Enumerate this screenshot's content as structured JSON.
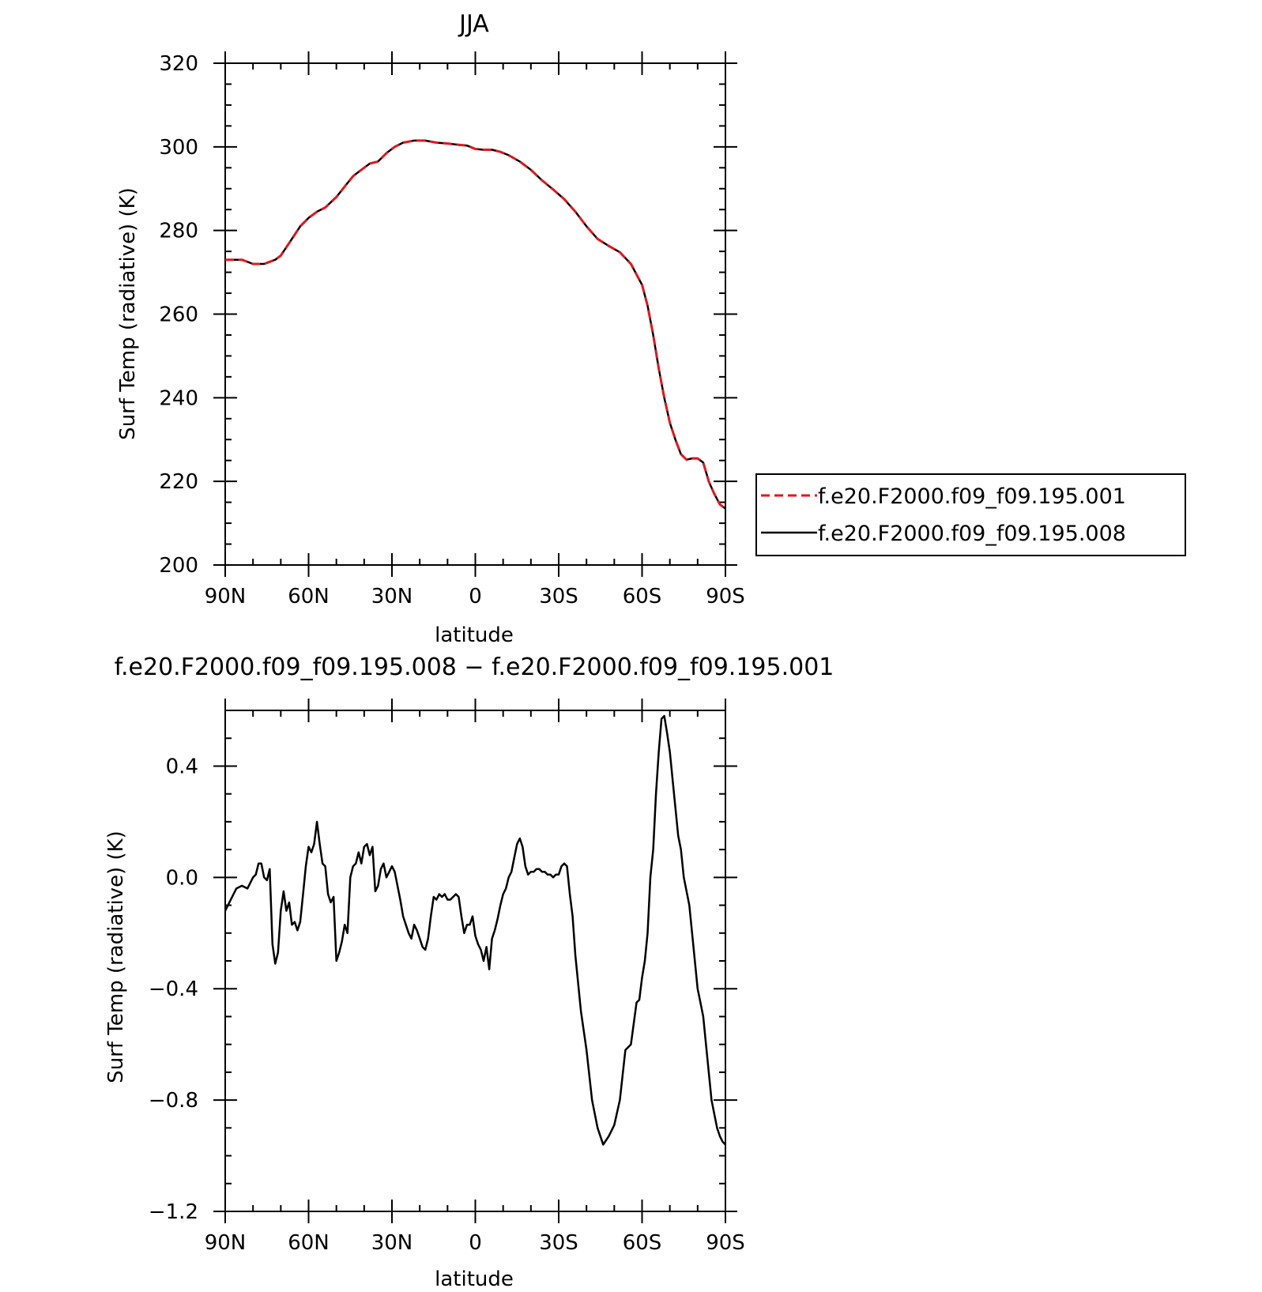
{
  "chart_data": [
    {
      "type": "line",
      "title": "JJA",
      "xlabel": "latitude",
      "ylabel": "Surf Temp (radiative) (K)",
      "x_tick_labels": [
        "90N",
        "60N",
        "30N",
        "0",
        "30S",
        "60S",
        "90S"
      ],
      "x_ticks": [
        90,
        60,
        30,
        0,
        -30,
        -60,
        -90
      ],
      "xlim": [
        90,
        -90
      ],
      "y_tick_labels": [
        "200",
        "220",
        "240",
        "260",
        "280",
        "300",
        "320"
      ],
      "y_ticks": [
        200,
        220,
        240,
        260,
        280,
        300,
        320
      ],
      "ylim": [
        200,
        320
      ],
      "grid": false,
      "legend": "outside-right",
      "series": [
        {
          "name": "f.e20.F2000.f09_f09.195.001",
          "color": "#e8141c",
          "style": "dashed",
          "x": [
            90,
            84,
            80,
            76,
            72,
            70,
            68,
            66,
            63,
            60,
            57,
            54,
            50,
            47,
            44,
            41,
            38,
            35,
            32,
            29,
            26,
            22,
            18,
            14,
            10,
            6,
            3,
            0,
            -3,
            -6,
            -9,
            -12,
            -16,
            -20,
            -24,
            -28,
            -32,
            -36,
            -40,
            -44,
            -48,
            -52,
            -56,
            -60,
            -62,
            -64,
            -66,
            -68,
            -70,
            -72,
            -74,
            -76,
            -78,
            -80,
            -82,
            -84,
            -86,
            -88,
            -90
          ],
          "y": [
            273,
            273,
            272,
            272,
            273,
            274,
            276,
            278,
            281,
            283,
            284.5,
            285.5,
            288,
            290.5,
            293,
            294.5,
            296,
            296.5,
            298.5,
            300,
            301,
            301.5,
            301.5,
            301,
            300.8,
            300.5,
            300.3,
            299.5,
            299.3,
            299.3,
            298.8,
            298,
            296.5,
            294.5,
            292,
            289.8,
            287.5,
            284.5,
            281,
            278,
            276.3,
            274.8,
            272,
            267,
            262,
            255,
            247,
            240,
            234,
            230,
            226.5,
            225.2,
            225.5,
            225.5,
            224.5,
            220,
            217,
            214.5,
            213.5
          ]
        },
        {
          "name": "f.e20.F2000.f09_f09.195.008",
          "color": "#000000",
          "style": "solid",
          "x": [
            90,
            84,
            80,
            76,
            72,
            70,
            68,
            66,
            63,
            60,
            57,
            54,
            50,
            47,
            44,
            41,
            38,
            35,
            32,
            29,
            26,
            22,
            18,
            14,
            10,
            6,
            3,
            0,
            -3,
            -6,
            -9,
            -12,
            -16,
            -20,
            -24,
            -28,
            -32,
            -36,
            -40,
            -44,
            -48,
            -52,
            -56,
            -60,
            -62,
            -64,
            -66,
            -68,
            -70,
            -72,
            -74,
            -76,
            -78,
            -80,
            -82,
            -84,
            -86,
            -88,
            -90
          ],
          "y": [
            273,
            273,
            272,
            272,
            273,
            274,
            276,
            278,
            281,
            283,
            284.5,
            285.5,
            288,
            290.5,
            293,
            294.5,
            296,
            296.5,
            298.5,
            300,
            301,
            301.5,
            301.5,
            301,
            300.8,
            300.5,
            300.3,
            299.5,
            299.3,
            299.3,
            298.8,
            298,
            296.5,
            294.5,
            292,
            289.8,
            287.5,
            284.5,
            281,
            278,
            276.3,
            274.8,
            272,
            267,
            262,
            255,
            247,
            240,
            234,
            230,
            226.5,
            225.2,
            225.5,
            225.5,
            224.5,
            220,
            217,
            214.5,
            213.5
          ]
        }
      ]
    },
    {
      "type": "line",
      "title": "f.e20.F2000.f09_f09.195.008 − f.e20.F2000.f09_f09.195.001",
      "xlabel": "latitude",
      "ylabel": "Surf Temp (radiative) (K)",
      "x_tick_labels": [
        "90N",
        "60N",
        "30N",
        "0",
        "30S",
        "60S",
        "90S"
      ],
      "x_ticks": [
        90,
        60,
        30,
        0,
        -30,
        -60,
        -90
      ],
      "xlim": [
        90,
        -90
      ],
      "y_tick_labels": [
        "−1.2",
        "−0.8",
        "−0.4",
        "0.0",
        "0.4"
      ],
      "y_ticks": [
        -1.2,
        -0.8,
        -0.4,
        0.0,
        0.4
      ],
      "ylim": [
        -1.2,
        0.6
      ],
      "grid": false,
      "series": [
        {
          "color": "#000000",
          "style": "solid",
          "x": [
            90,
            88,
            86,
            84,
            82,
            80,
            79,
            78,
            77,
            76,
            75,
            74,
            73,
            72,
            71,
            70,
            69,
            68,
            67,
            66,
            65,
            64,
            63,
            62,
            61,
            60,
            59,
            58,
            57,
            56,
            55,
            54,
            53,
            52,
            51,
            50,
            49,
            48,
            47,
            46,
            45,
            44,
            43,
            42,
            41,
            40,
            39,
            38,
            37,
            36,
            35,
            34,
            33,
            32,
            31,
            30,
            29,
            28,
            27,
            26,
            25,
            24,
            23,
            22,
            21,
            20,
            19,
            18,
            17,
            16,
            15,
            14,
            13,
            12,
            11,
            10,
            9,
            8,
            7,
            6,
            5,
            4,
            3,
            2,
            1,
            0,
            -1,
            -2,
            -3,
            -4,
            -5,
            -6,
            -7,
            -8,
            -9,
            -10,
            -11,
            -12,
            -13,
            -14,
            -15,
            -16,
            -17,
            -18,
            -19,
            -20,
            -21,
            -22,
            -23,
            -24,
            -25,
            -26,
            -27,
            -28,
            -29,
            -30,
            -31,
            -32,
            -33,
            -34,
            -35,
            -36,
            -38,
            -40,
            -42,
            -44,
            -46,
            -48,
            -50,
            -52,
            -54,
            -56,
            -58,
            -59,
            -60,
            -61,
            -62,
            -63,
            -64,
            -65,
            -66,
            -67,
            -68,
            -69,
            -70,
            -71,
            -72,
            -73,
            -74,
            -75,
            -76,
            -77,
            -78,
            -79,
            -80,
            -81,
            -82,
            -83,
            -84,
            -85,
            -86,
            -87,
            -88,
            -89,
            -90
          ],
          "y": [
            -0.12,
            -0.08,
            -0.04,
            -0.03,
            -0.04,
            0.0,
            0.01,
            0.05,
            0.05,
            0.0,
            -0.01,
            0.03,
            -0.24,
            -0.31,
            -0.27,
            -0.12,
            -0.05,
            -0.12,
            -0.09,
            -0.17,
            -0.16,
            -0.19,
            -0.16,
            -0.06,
            0.04,
            0.11,
            0.09,
            0.12,
            0.2,
            0.12,
            0.05,
            0.04,
            -0.06,
            -0.09,
            -0.07,
            -0.3,
            -0.27,
            -0.23,
            -0.17,
            -0.2,
            0.0,
            0.04,
            0.05,
            0.09,
            0.05,
            0.11,
            0.12,
            0.08,
            0.11,
            -0.05,
            -0.03,
            0.03,
            0.05,
            0.0,
            0.02,
            0.04,
            0.02,
            -0.03,
            -0.08,
            -0.14,
            -0.17,
            -0.2,
            -0.22,
            -0.17,
            -0.19,
            -0.22,
            -0.25,
            -0.26,
            -0.22,
            -0.14,
            -0.07,
            -0.08,
            -0.06,
            -0.07,
            -0.06,
            -0.08,
            -0.08,
            -0.07,
            -0.06,
            -0.07,
            -0.14,
            -0.2,
            -0.17,
            -0.17,
            -0.14,
            -0.21,
            -0.24,
            -0.26,
            -0.3,
            -0.25,
            -0.33,
            -0.22,
            -0.19,
            -0.15,
            -0.1,
            -0.06,
            -0.04,
            0.0,
            0.02,
            0.07,
            0.12,
            0.14,
            0.11,
            0.04,
            0.01,
            0.02,
            0.02,
            0.03,
            0.03,
            0.02,
            0.02,
            0.01,
            0.01,
            0.0,
            0.01,
            0.01,
            0.04,
            0.05,
            0.04,
            -0.06,
            -0.14,
            -0.28,
            -0.48,
            -0.62,
            -0.8,
            -0.9,
            -0.96,
            -0.93,
            -0.89,
            -0.8,
            -0.62,
            -0.6,
            -0.45,
            -0.44,
            -0.36,
            -0.3,
            -0.2,
            0.0,
            0.1,
            0.3,
            0.45,
            0.57,
            0.58,
            0.52,
            0.45,
            0.35,
            0.25,
            0.15,
            0.1,
            0.0,
            -0.05,
            -0.1,
            -0.2,
            -0.3,
            -0.4,
            -0.45,
            -0.5,
            -0.6,
            -0.7,
            -0.8,
            -0.85,
            -0.9,
            -0.93,
            -0.95,
            -0.96
          ]
        }
      ]
    }
  ]
}
